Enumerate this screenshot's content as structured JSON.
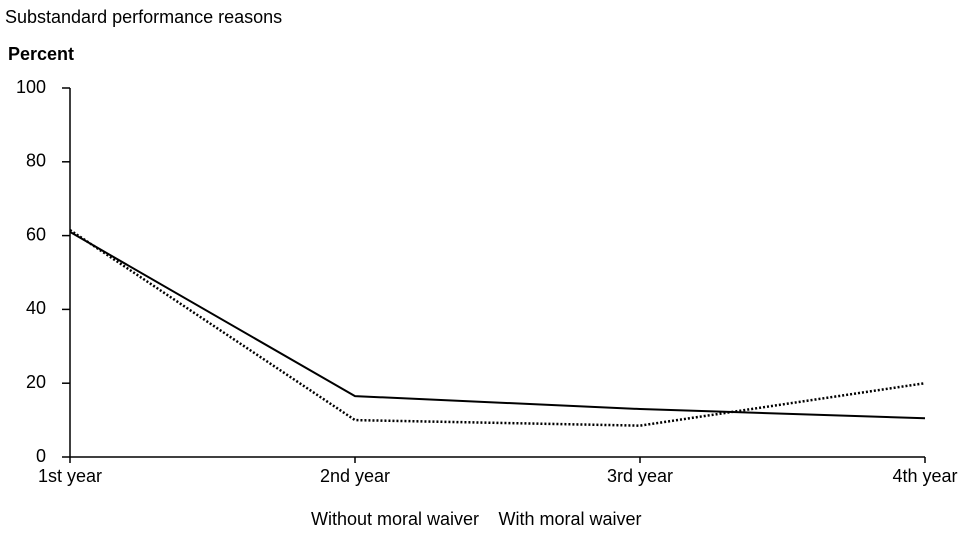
{
  "chart_data": {
    "type": "line",
    "title": "Substandard performance reasons",
    "y_label": "Percent",
    "categories": [
      "1st year",
      "2nd year",
      "3rd year",
      "4th year"
    ],
    "series": [
      {
        "name": "Without moral waiver",
        "color": "#000000",
        "style": "solid",
        "values": [
          61,
          16.5,
          13,
          10.5
        ]
      },
      {
        "name": "With moral waiver",
        "color": "#000000",
        "style": "dotted",
        "values": [
          61.5,
          10,
          8.5,
          20
        ]
      }
    ],
    "ylim": [
      0,
      100
    ],
    "yticks": [
      0,
      20,
      40,
      60,
      80,
      100
    ],
    "grid": false
  }
}
